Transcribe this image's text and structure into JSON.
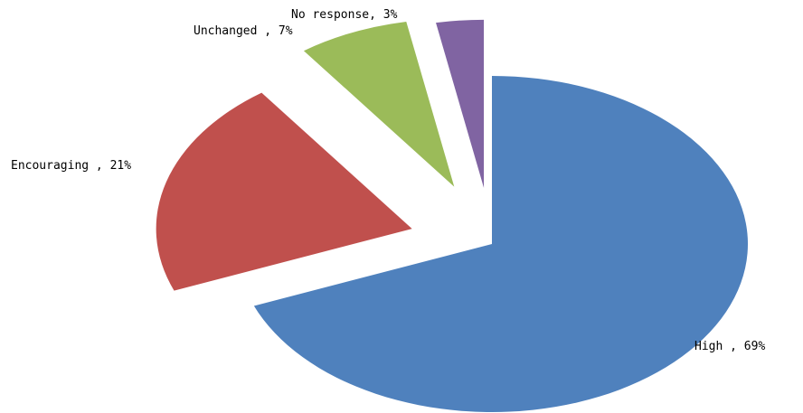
{
  "chart_data": {
    "type": "pie",
    "title": "",
    "slices": [
      {
        "name": "High",
        "value": 69,
        "color": "#4f81bd",
        "label": "High , 69%"
      },
      {
        "name": "Encouraging",
        "value": 21,
        "color": "#c0504d",
        "label": "Encouraging , 21%"
      },
      {
        "name": "Unchanged",
        "value": 7,
        "color": "#9bbb59",
        "label": "Unchanged , 7%"
      },
      {
        "name": "No response",
        "value": 3,
        "color": "#8064a2",
        "label": "No response, 3%"
      }
    ],
    "legend": "none",
    "exploded": true
  }
}
